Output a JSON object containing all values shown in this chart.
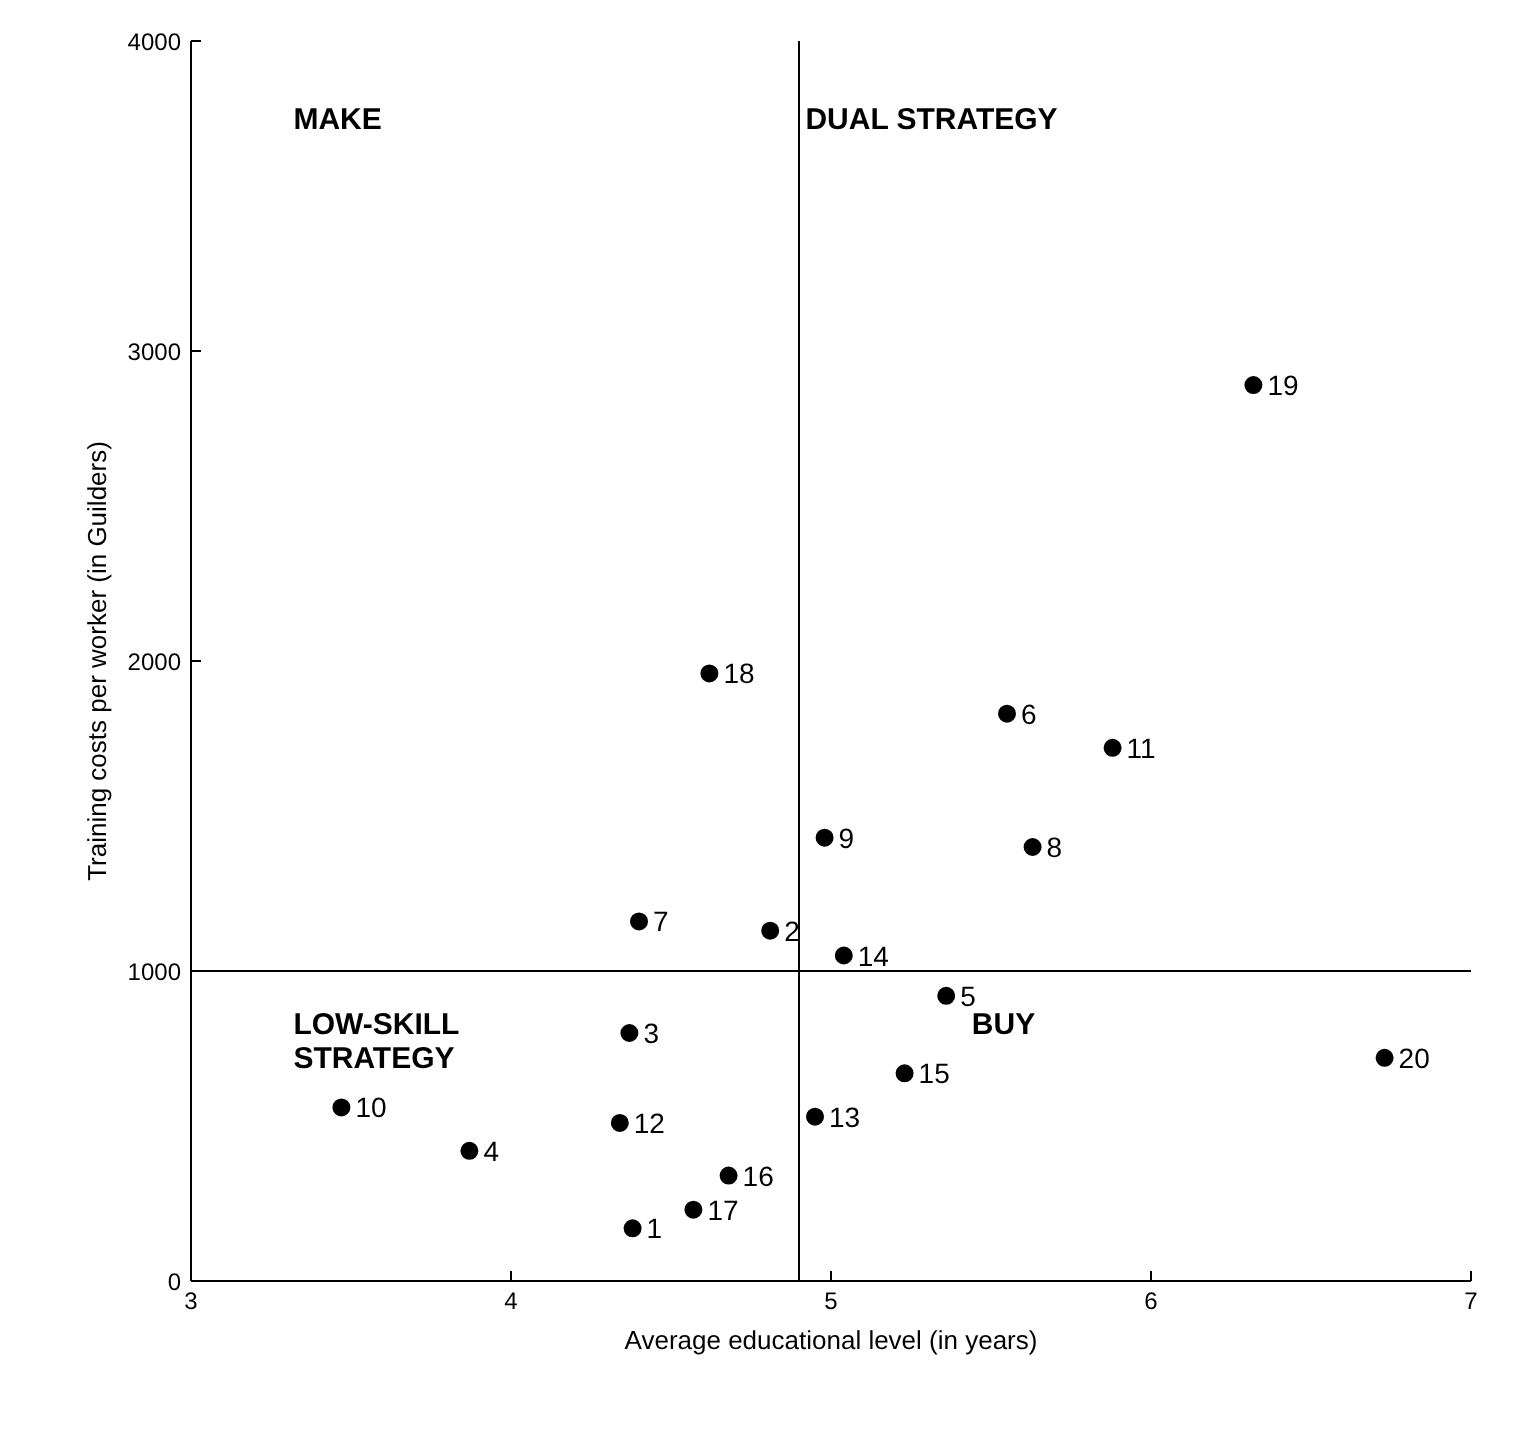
{
  "chart_data": {
    "type": "scatter",
    "xlabel": "Average educational level (in years)",
    "ylabel": "Training costs per worker (in Guilders)",
    "series": [
      {
        "name": "1",
        "color": "#000000",
        "x": [
          4.38
        ],
        "values": [
          170
        ]
      },
      {
        "name": "2",
        "color": "#000000",
        "x": [
          4.81
        ],
        "values": [
          1130
        ]
      },
      {
        "name": "3",
        "color": "#000000",
        "x": [
          4.37
        ],
        "values": [
          800
        ]
      },
      {
        "name": "4",
        "color": "#000000",
        "x": [
          3.87
        ],
        "values": [
          420
        ]
      },
      {
        "name": "5",
        "color": "#000000",
        "x": [
          5.36
        ],
        "values": [
          920
        ]
      },
      {
        "name": "6",
        "color": "#000000",
        "x": [
          5.55
        ],
        "values": [
          1830
        ]
      },
      {
        "name": "7",
        "color": "#000000",
        "x": [
          4.4
        ],
        "values": [
          1160
        ]
      },
      {
        "name": "8",
        "color": "#000000",
        "x": [
          5.63
        ],
        "values": [
          1400
        ]
      },
      {
        "name": "9",
        "color": "#000000",
        "x": [
          4.98
        ],
        "values": [
          1430
        ]
      },
      {
        "name": "10",
        "color": "#000000",
        "x": [
          3.47
        ],
        "values": [
          560
        ]
      },
      {
        "name": "11",
        "color": "#000000",
        "x": [
          5.88
        ],
        "values": [
          1720
        ]
      },
      {
        "name": "12",
        "color": "#000000",
        "x": [
          4.34
        ],
        "values": [
          510
        ]
      },
      {
        "name": "13",
        "color": "#000000",
        "x": [
          4.95
        ],
        "values": [
          530
        ]
      },
      {
        "name": "14",
        "color": "#000000",
        "x": [
          5.04
        ],
        "values": [
          1050
        ]
      },
      {
        "name": "15",
        "color": "#000000",
        "x": [
          5.23
        ],
        "values": [
          670
        ]
      },
      {
        "name": "16",
        "color": "#000000",
        "x": [
          4.68
        ],
        "values": [
          340
        ]
      },
      {
        "name": "17",
        "color": "#000000",
        "x": [
          4.57
        ],
        "values": [
          230
        ]
      },
      {
        "name": "18",
        "color": "#000000",
        "x": [
          4.62
        ],
        "values": [
          1960
        ]
      },
      {
        "name": "19",
        "color": "#000000",
        "x": [
          6.32
        ],
        "values": [
          2890
        ]
      },
      {
        "name": "20",
        "color": "#000000",
        "x": [
          6.73
        ],
        "values": [
          720
        ]
      }
    ],
    "marker": "circle",
    "grid": false,
    "xlim": [
      3,
      7
    ],
    "ylim": [
      0,
      4000
    ],
    "xticks": [
      3,
      4,
      5,
      6,
      7
    ],
    "yticks": [
      0,
      1000,
      2000,
      3000,
      4000
    ],
    "ref_lines": [
      {
        "axis": "x",
        "value": 4.9,
        "color": "#000000"
      },
      {
        "axis": "y",
        "value": 1000,
        "color": "#000000"
      }
    ],
    "annotations": [
      "MAKE",
      "DUAL STRATEGY",
      "LOW-SKILL\nSTRATEGY",
      "BUY"
    ]
  }
}
